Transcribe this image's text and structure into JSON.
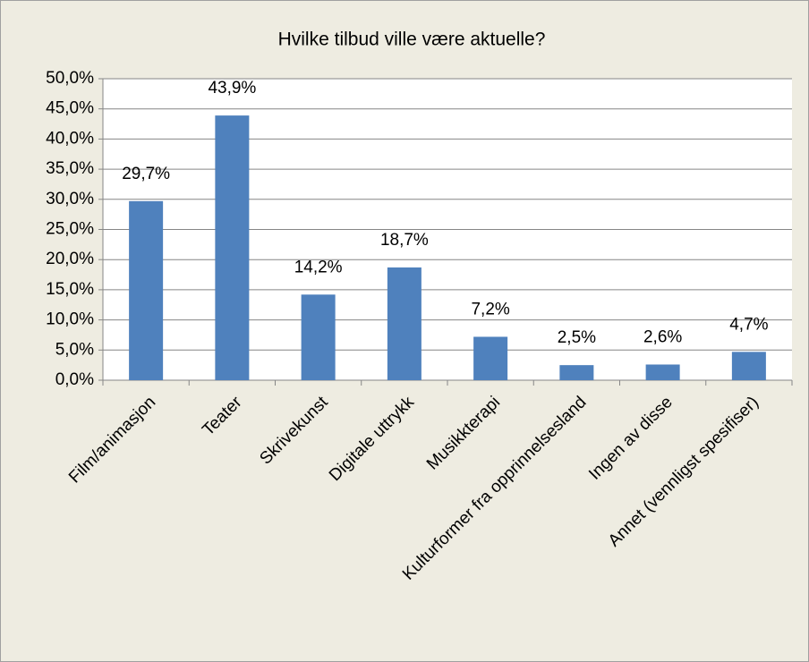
{
  "chart_data": {
    "type": "bar",
    "title": "Hvilke tilbud ville være aktuelle?",
    "categories": [
      "Film/animasjon",
      "Teater",
      "Skrivekunst",
      "Digitale uttrykk",
      "Musikkterapi",
      "Kulturformer fra opprinnelsesland",
      "Ingen av disse",
      "Annet (vennligst spesifiser)"
    ],
    "values": [
      29.7,
      43.9,
      14.2,
      18.7,
      7.2,
      2.5,
      2.6,
      4.7
    ],
    "value_labels": [
      "29,7%",
      "43,9%",
      "14,2%",
      "18,7%",
      "7,2%",
      "2,5%",
      "2,6%",
      "4,7%"
    ],
    "color": "#4f81bd",
    "ylim": [
      0,
      50
    ],
    "yticks": [
      {
        "value": 0,
        "label": "0,0%"
      },
      {
        "value": 5,
        "label": "5,0%"
      },
      {
        "value": 10,
        "label": "10,0%"
      },
      {
        "value": 15,
        "label": "15,0%"
      },
      {
        "value": 20,
        "label": "20,0%"
      },
      {
        "value": 25,
        "label": "25,0%"
      },
      {
        "value": 30,
        "label": "30,0%"
      },
      {
        "value": 35,
        "label": "35,0%"
      },
      {
        "value": 40,
        "label": "40,0%"
      },
      {
        "value": 45,
        "label": "45,0%"
      },
      {
        "value": 50,
        "label": "50,0%"
      }
    ],
    "grid": true
  }
}
